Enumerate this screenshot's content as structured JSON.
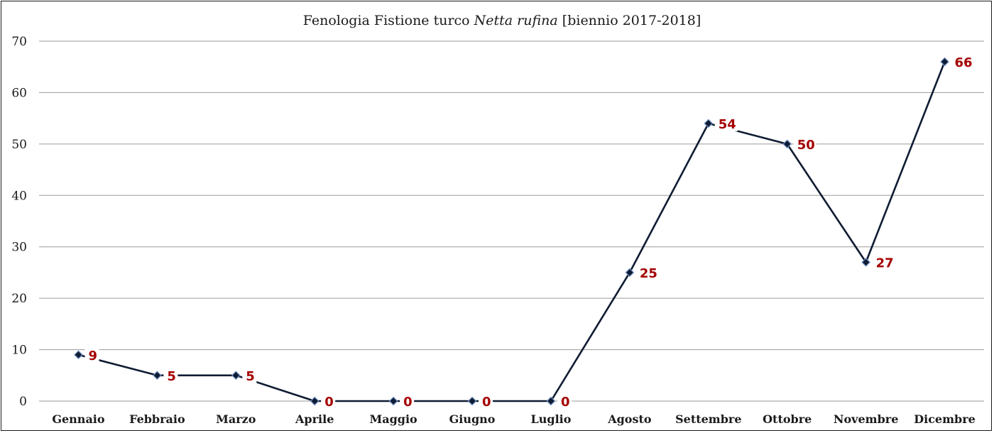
{
  "chart_data": {
    "type": "line",
    "title": {
      "prefix": "Fenologia Fistione turco ",
      "species": "Netta rufina",
      "suffix": " [biennio 2017-2018]"
    },
    "categories": [
      "Gennaio",
      "Febbraio",
      "Marzo",
      "Aprile",
      "Maggio",
      "Giugno",
      "Luglio",
      "Agosto",
      "Settembre",
      "Ottobre",
      "Novembre",
      "Dicembre"
    ],
    "series": [
      {
        "values": [
          9,
          5,
          5,
          0,
          0,
          0,
          0,
          25,
          54,
          50,
          27,
          66
        ]
      }
    ],
    "ylim": [
      0,
      70
    ],
    "yticks": [
      0,
      10,
      20,
      30,
      40,
      50,
      60,
      70
    ],
    "xlabel": "",
    "ylabel": "",
    "grid": true,
    "legend": "none",
    "colors": {
      "line": "#0f1c33",
      "marker_edge": "#6f8fc4",
      "data_label": "#a50000",
      "grid": "#9a9a9a"
    },
    "marker": "diamond",
    "data_labels": true
  }
}
